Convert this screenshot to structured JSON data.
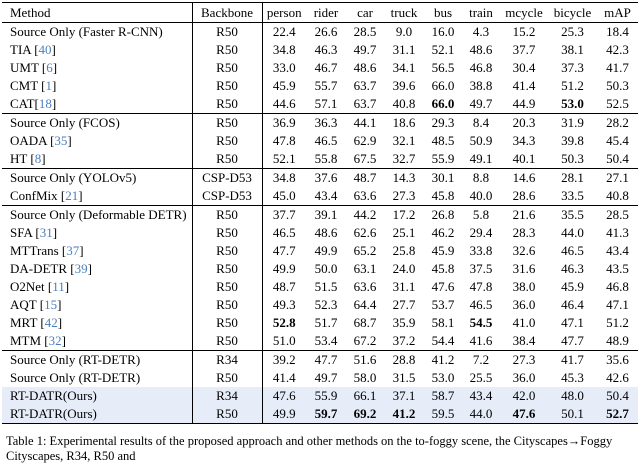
{
  "colors": {
    "highlight_row": "#e6edf8",
    "citation_blue": "#4d7fbc"
  },
  "caption": {
    "text": "Table 1: Experimental results of the proposed approach and other methods on the to-foggy scene, the Cityscapes→Foggy Cityscapes, R34, R50 and"
  },
  "table": {
    "columns": [
      "Method",
      "Backbone",
      "person",
      "rider",
      "car",
      "truck",
      "bus",
      "train",
      "mcycle",
      "bicycle",
      "mAP"
    ],
    "groups": [
      {
        "rows": [
          {
            "m": "Source Only (Faster R-CNN)",
            "c": "",
            "backbone": "R50",
            "values": [
              "22.4",
              "26.6",
              "28.5",
              "9.0",
              "16.0",
              "4.3",
              "15.2",
              "25.3",
              "18.4"
            ],
            "bold": [],
            "highlight": false
          },
          {
            "m": "TIA [",
            "c": "40",
            "backbone": "R50",
            "values": [
              "34.8",
              "46.3",
              "49.7",
              "31.1",
              "52.1",
              "48.6",
              "37.7",
              "38.1",
              "42.3"
            ],
            "bold": [],
            "highlight": false
          },
          {
            "m": "UMT [",
            "c": "6",
            "backbone": "R50",
            "values": [
              "33.0",
              "46.7",
              "48.6",
              "34.1",
              "56.5",
              "46.8",
              "30.4",
              "37.3",
              "41.7"
            ],
            "bold": [],
            "highlight": false
          },
          {
            "m": "CMT [",
            "c": "1",
            "backbone": "R50",
            "values": [
              "45.9",
              "55.7",
              "63.7",
              "39.6",
              "66.0",
              "38.8",
              "41.4",
              "51.2",
              "50.3"
            ],
            "bold": [],
            "highlight": false
          },
          {
            "m": "CAT[",
            "c": "18",
            "backbone": "R50",
            "values": [
              "44.6",
              "57.1",
              "63.7",
              "40.8",
              "66.0",
              "49.7",
              "44.9",
              "53.0",
              "52.5"
            ],
            "bold": [
              4,
              7
            ],
            "highlight": false
          }
        ]
      },
      {
        "rows": [
          {
            "m": "Source Only (FCOS)",
            "c": "",
            "backbone": "R50",
            "values": [
              "36.9",
              "36.3",
              "44.1",
              "18.6",
              "29.3",
              "8.4",
              "20.3",
              "31.9",
              "28.2"
            ],
            "bold": [],
            "highlight": false
          },
          {
            "m": "OADA [",
            "c": "35",
            "backbone": "R50",
            "values": [
              "47.8",
              "46.5",
              "62.9",
              "32.1",
              "48.5",
              "50.9",
              "34.3",
              "39.8",
              "45.4"
            ],
            "bold": [],
            "highlight": false
          },
          {
            "m": "HT [",
            "c": "8",
            "backbone": "R50",
            "values": [
              "52.1",
              "55.8",
              "67.5",
              "32.7",
              "55.9",
              "49.1",
              "40.1",
              "50.3",
              "50.4"
            ],
            "bold": [],
            "highlight": false
          }
        ]
      },
      {
        "rows": [
          {
            "m": "Source Only (YOLOv5)",
            "c": "",
            "backbone": "CSP-D53",
            "values": [
              "34.8",
              "37.6",
              "48.7",
              "14.3",
              "30.1",
              "8.8",
              "14.6",
              "28.1",
              "27.1"
            ],
            "bold": [],
            "highlight": false
          },
          {
            "m": "ConfMix [",
            "c": "21",
            "backbone": "CSP-D53",
            "values": [
              "45.0",
              "43.4",
              "63.6",
              "27.3",
              "45.8",
              "40.0",
              "28.6",
              "33.5",
              "40.8"
            ],
            "bold": [],
            "highlight": false
          }
        ]
      },
      {
        "rows": [
          {
            "m": "Source Only (Deformable DETR)",
            "c": "",
            "backbone": "R50",
            "values": [
              "37.7",
              "39.1",
              "44.2",
              "17.2",
              "26.8",
              "5.8",
              "21.6",
              "35.5",
              "28.5"
            ],
            "bold": [],
            "highlight": false
          },
          {
            "m": "SFA [",
            "c": "31",
            "backbone": "R50",
            "values": [
              "46.5",
              "48.6",
              "62.6",
              "25.1",
              "46.2",
              "29.4",
              "28.3",
              "44.0",
              "41.3"
            ],
            "bold": [],
            "highlight": false
          },
          {
            "m": "MTTrans [",
            "c": "37",
            "backbone": "R50",
            "values": [
              "47.7",
              "49.9",
              "65.2",
              "25.8",
              "45.9",
              "33.8",
              "32.6",
              "46.5",
              "43.4"
            ],
            "bold": [],
            "highlight": false
          },
          {
            "m": "DA-DETR [",
            "c": "39",
            "backbone": "R50",
            "values": [
              "49.9",
              "50.0",
              "63.1",
              "24.0",
              "45.8",
              "37.5",
              "31.6",
              "46.3",
              "43.5"
            ],
            "bold": [],
            "highlight": false
          },
          {
            "m": "O2Net [",
            "c": "11",
            "backbone": "R50",
            "values": [
              "48.7",
              "51.5",
              "63.6",
              "31.1",
              "47.6",
              "47.8",
              "38.0",
              "45.9",
              "46.8"
            ],
            "bold": [],
            "highlight": false
          },
          {
            "m": "AQT [",
            "c": "15",
            "backbone": "R50",
            "values": [
              "49.3",
              "52.3",
              "64.4",
              "27.7",
              "53.7",
              "46.5",
              "36.0",
              "46.4",
              "47.1"
            ],
            "bold": [],
            "highlight": false
          },
          {
            "m": "MRT [",
            "c": "42",
            "backbone": "R50",
            "values": [
              "52.8",
              "51.7",
              "68.7",
              "35.9",
              "58.1",
              "54.5",
              "41.0",
              "47.1",
              "51.2"
            ],
            "bold": [
              0,
              5
            ],
            "highlight": false
          },
          {
            "m": "MTM [",
            "c": "32",
            "backbone": "R50",
            "values": [
              "51.0",
              "53.4",
              "67.2",
              "37.2",
              "54.4",
              "41.6",
              "38.4",
              "47.7",
              "48.9"
            ],
            "bold": [],
            "highlight": false
          }
        ]
      },
      {
        "rows": [
          {
            "m": "Source Only (RT-DETR)",
            "c": "",
            "backbone": "R34",
            "values": [
              "39.2",
              "47.7",
              "51.6",
              "28.8",
              "41.2",
              "7.2",
              "27.3",
              "41.7",
              "35.6"
            ],
            "bold": [],
            "highlight": false
          },
          {
            "m": "Source Only (RT-DETR)",
            "c": "",
            "backbone": "R50",
            "values": [
              "41.4",
              "49.7",
              "58.0",
              "31.5",
              "53.0",
              "25.5",
              "36.0",
              "45.3",
              "42.6"
            ],
            "bold": [],
            "highlight": false
          },
          {
            "m": "RT-DATR(Ours)",
            "c": "",
            "backbone": "R34",
            "values": [
              "47.6",
              "55.9",
              "66.1",
              "37.1",
              "58.7",
              "43.4",
              "42.0",
              "48.0",
              "50.4"
            ],
            "bold": [],
            "highlight": true
          },
          {
            "m": "RT-DATR(Ours)",
            "c": "",
            "backbone": "R50",
            "values": [
              "49.9",
              "59.7",
              "69.2",
              "41.2",
              "59.5",
              "44.0",
              "47.6",
              "50.1",
              "52.7"
            ],
            "bold": [
              1,
              2,
              3,
              6,
              8
            ],
            "highlight": true
          }
        ]
      }
    ]
  }
}
